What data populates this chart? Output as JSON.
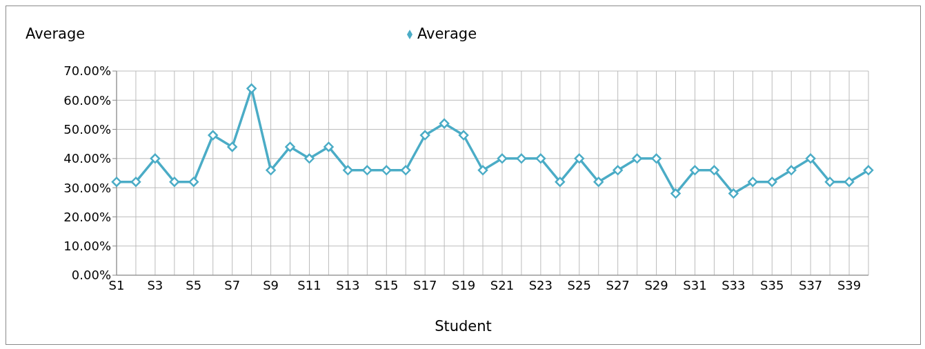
{
  "chart_data": {
    "type": "line",
    "ylabel": "Average",
    "xlabel": "Student",
    "categories": [
      "S1",
      null,
      "S3",
      null,
      "S5",
      null,
      "S7",
      null,
      "S9",
      null,
      "S11",
      null,
      "S13",
      null,
      "S15",
      null,
      "S17",
      null,
      "S19",
      null,
      "S21",
      null,
      "S23",
      null,
      "S25",
      null,
      "S27",
      null,
      "S29",
      null,
      "S31",
      null,
      "S33",
      null,
      "S35",
      null,
      "S37",
      null,
      "S39",
      null
    ],
    "series": [
      {
        "name": "Average",
        "color": "#4bacc6",
        "values": [
          0.32,
          0.32,
          0.4,
          0.32,
          0.32,
          0.48,
          0.44,
          0.64,
          0.36,
          0.44,
          0.4,
          0.44,
          0.36,
          0.36,
          0.36,
          0.36,
          0.48,
          0.52,
          0.48,
          0.36,
          0.4,
          0.4,
          0.4,
          0.32,
          0.4,
          0.32,
          0.36,
          0.4,
          0.4,
          0.28,
          0.36,
          0.36,
          0.28,
          0.32,
          0.32,
          0.36,
          0.4,
          0.32,
          0.32,
          0.36
        ]
      }
    ],
    "ylim": [
      0,
      0.7
    ],
    "yticks": [
      {
        "value": 0,
        "label": "0.00%"
      },
      {
        "value": 0.1,
        "label": "10.00%"
      },
      {
        "value": 0.2,
        "label": "20.00%"
      },
      {
        "value": 0.3,
        "label": "30.00%"
      },
      {
        "value": 0.4,
        "label": "40.00%"
      },
      {
        "value": 0.5,
        "label": "50.00%"
      },
      {
        "value": 0.6,
        "label": "60.00%"
      },
      {
        "value": 0.7,
        "label": "70.00%"
      }
    ],
    "grid": true,
    "legend": "top",
    "marker": "diamond",
    "line_style": "solid"
  }
}
